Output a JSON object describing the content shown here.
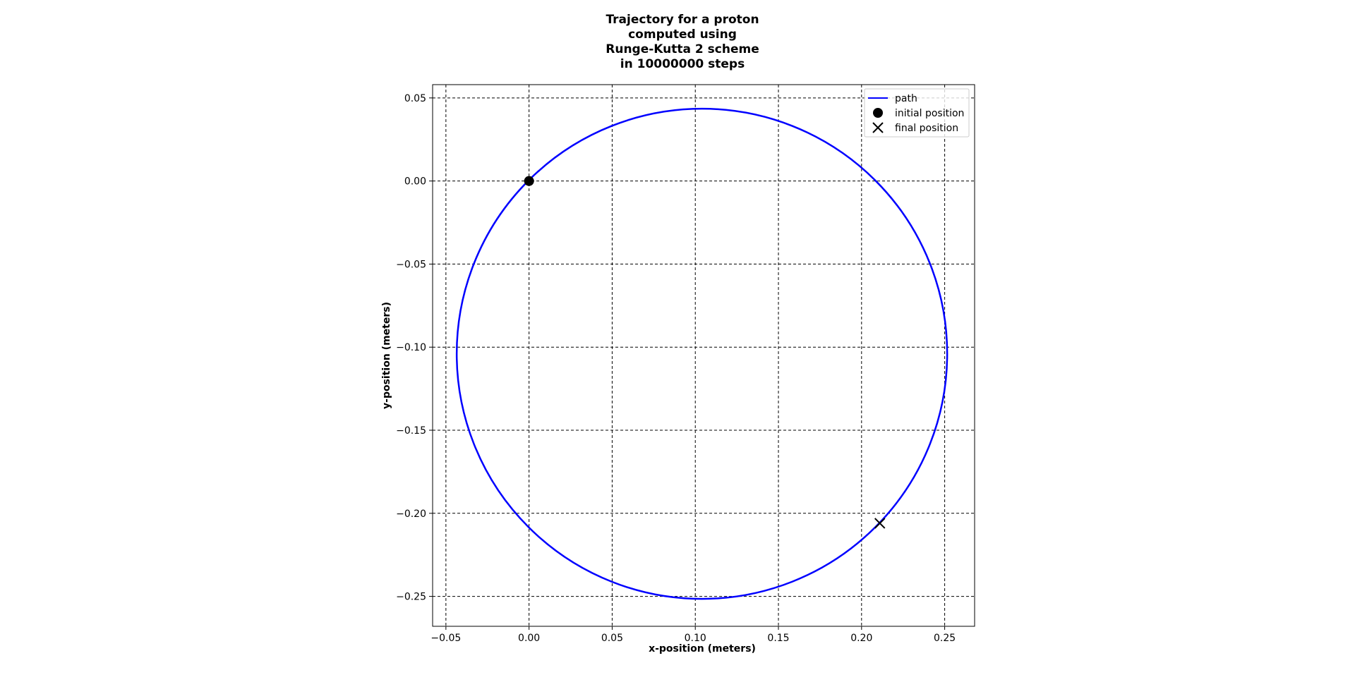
{
  "chart_data": {
    "type": "line",
    "title_lines": [
      "Trajectory for a proton",
      "computed using",
      "Runge-Kutta 2 scheme",
      "in 10000000 steps"
    ],
    "xlabel": "x-position (meters)",
    "ylabel": "y-position (meters)",
    "xlim": [
      -0.058,
      0.268
    ],
    "ylim": [
      -0.268,
      0.058
    ],
    "xticks": [
      -0.05,
      0.0,
      0.05,
      0.1,
      0.15,
      0.2,
      0.25
    ],
    "xtick_labels": [
      "−0.05",
      "0.00",
      "0.05",
      "0.10",
      "0.15",
      "0.20",
      "0.25"
    ],
    "yticks": [
      0.05,
      0.0,
      -0.05,
      -0.1,
      -0.15,
      -0.2,
      -0.25
    ],
    "ytick_labels": [
      "0.05",
      "0.00",
      "−0.05",
      "−0.10",
      "−0.15",
      "−0.20",
      "−0.25"
    ],
    "grid": true,
    "legend_position": "top-right",
    "series": [
      {
        "name": "path",
        "kind": "circle-path",
        "color": "#0000ff",
        "center": [
          0.104,
          -0.104
        ],
        "radius": 0.1475
      },
      {
        "name": "initial position",
        "kind": "marker-dot",
        "color": "#000000",
        "x": 0.0,
        "y": 0.0
      },
      {
        "name": "final position",
        "kind": "marker-x",
        "color": "#000000",
        "x": 0.211,
        "y": -0.206
      }
    ]
  }
}
